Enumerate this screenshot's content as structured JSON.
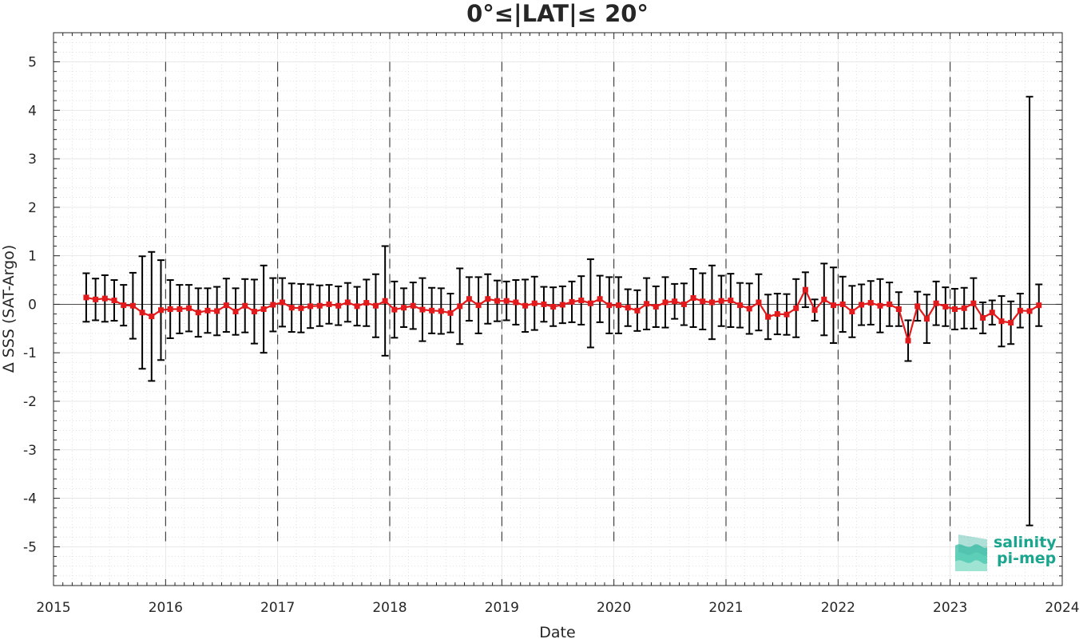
{
  "chart_data": {
    "type": "line",
    "title": "0°≤|LAT|≤ 20°",
    "xlabel": "Date",
    "ylabel": "Δ SSS (SAT-Argo)",
    "xlim": [
      2015,
      2024
    ],
    "ylim": [
      -5.8,
      5.6
    ],
    "xticks": [
      2015,
      2016,
      2017,
      2018,
      2019,
      2020,
      2021,
      2022,
      2023,
      2024
    ],
    "xtick_labels": [
      "2015",
      "2016",
      "2017",
      "2018",
      "2019",
      "2020",
      "2021",
      "2022",
      "2023",
      "2024"
    ],
    "yticks": [
      5,
      4,
      3,
      2,
      1,
      0,
      -1,
      -2,
      -3,
      -4,
      -5
    ],
    "ytick_labels": [
      "5",
      "4",
      "3",
      "2",
      "1",
      "0",
      "-1",
      "-2",
      "-3",
      "-4",
      "-5"
    ],
    "grid": true,
    "year_dividers": [
      2016,
      2017,
      2018,
      2019,
      2020,
      2021,
      2022,
      2023
    ],
    "series": [
      {
        "color": "#e31a1c",
        "x": [
          "2015-04",
          "2015-05",
          "2015-06",
          "2015-07",
          "2015-08",
          "2015-09",
          "2015-10",
          "2015-11",
          "2015-12",
          "2016-01",
          "2016-02",
          "2016-03",
          "2016-04",
          "2016-05",
          "2016-06",
          "2016-07",
          "2016-08",
          "2016-09",
          "2016-10",
          "2016-11",
          "2016-12",
          "2017-01",
          "2017-02",
          "2017-03",
          "2017-04",
          "2017-05",
          "2017-06",
          "2017-07",
          "2017-08",
          "2017-09",
          "2017-10",
          "2017-11",
          "2017-12",
          "2018-01",
          "2018-02",
          "2018-03",
          "2018-04",
          "2018-05",
          "2018-06",
          "2018-07",
          "2018-08",
          "2018-09",
          "2018-10",
          "2018-11",
          "2018-12",
          "2019-01",
          "2019-02",
          "2019-03",
          "2019-04",
          "2019-05",
          "2019-06",
          "2019-07",
          "2019-08",
          "2019-09",
          "2019-10",
          "2019-11",
          "2019-12",
          "2020-01",
          "2020-02",
          "2020-03",
          "2020-04",
          "2020-05",
          "2020-06",
          "2020-07",
          "2020-08",
          "2020-09",
          "2020-10",
          "2020-11",
          "2020-12",
          "2021-01",
          "2021-02",
          "2021-03",
          "2021-04",
          "2021-05",
          "2021-06",
          "2021-07",
          "2021-08",
          "2021-09",
          "2021-10",
          "2021-11",
          "2021-12",
          "2022-01",
          "2022-02",
          "2022-03",
          "2022-04",
          "2022-05",
          "2022-06",
          "2022-07",
          "2022-08",
          "2022-09",
          "2022-10",
          "2022-11",
          "2022-12",
          "2023-01",
          "2023-02",
          "2023-03",
          "2023-04",
          "2023-05",
          "2023-06",
          "2023-07",
          "2023-08",
          "2023-09",
          "2023-10"
        ],
        "values": [
          0.14,
          0.1,
          0.12,
          0.08,
          -0.02,
          -0.03,
          -0.17,
          -0.25,
          -0.12,
          -0.1,
          -0.1,
          -0.08,
          -0.17,
          -0.13,
          -0.14,
          -0.02,
          -0.15,
          -0.03,
          -0.15,
          -0.1,
          -0.01,
          0.04,
          -0.07,
          -0.08,
          -0.04,
          -0.03,
          0.0,
          -0.03,
          0.04,
          -0.04,
          0.03,
          -0.03,
          0.07,
          -0.11,
          -0.07,
          -0.03,
          -0.11,
          -0.13,
          -0.14,
          -0.18,
          -0.04,
          0.11,
          -0.02,
          0.11,
          0.07,
          0.07,
          0.04,
          -0.03,
          0.02,
          0.0,
          -0.05,
          -0.01,
          0.05,
          0.08,
          0.02,
          0.11,
          -0.02,
          -0.02,
          -0.07,
          -0.13,
          0.01,
          -0.05,
          0.04,
          0.06,
          0.0,
          0.13,
          0.06,
          0.04,
          0.07,
          0.08,
          -0.02,
          -0.09,
          0.04,
          -0.26,
          -0.2,
          -0.21,
          -0.08,
          0.3,
          -0.12,
          0.1,
          -0.02,
          0.0,
          -0.15,
          -0.01,
          0.03,
          -0.03,
          0.0,
          -0.1,
          -0.75,
          -0.04,
          -0.3,
          0.02,
          -0.05,
          -0.1,
          -0.08,
          0.02,
          -0.28,
          -0.17,
          -0.35,
          -0.38,
          -0.13,
          -0.14,
          -0.02
        ],
        "error": [
          0.5,
          0.43,
          0.48,
          0.42,
          0.42,
          0.68,
          1.16,
          1.33,
          1.03,
          0.6,
          0.5,
          0.48,
          0.5,
          0.46,
          0.5,
          0.55,
          0.48,
          0.55,
          0.66,
          0.9,
          0.55,
          0.5,
          0.5,
          0.5,
          0.45,
          0.42,
          0.4,
          0.4,
          0.4,
          0.4,
          0.48,
          0.65,
          1.13,
          0.58,
          0.4,
          0.48,
          0.65,
          0.47,
          0.47,
          0.4,
          0.78,
          0.45,
          0.58,
          0.51,
          0.42,
          0.4,
          0.46,
          0.54,
          0.55,
          0.36,
          0.4,
          0.38,
          0.42,
          0.5,
          0.91,
          0.48,
          0.58,
          0.58,
          0.38,
          0.42,
          0.53,
          0.42,
          0.52,
          0.36,
          0.43,
          0.6,
          0.58,
          0.76,
          0.52,
          0.55,
          0.46,
          0.52,
          0.58,
          0.46,
          0.42,
          0.42,
          0.6,
          0.36,
          0.22,
          0.74,
          0.78,
          0.57,
          0.53,
          0.42,
          0.45,
          0.55,
          0.45,
          0.35,
          0.42,
          0.3,
          0.5,
          0.45,
          0.4,
          0.42,
          0.42,
          0.52,
          0.32,
          0.25,
          0.52,
          0.44,
          0.35,
          4.42,
          0.43
        ]
      }
    ]
  },
  "logo": {
    "line1": "salinity",
    "line2": "pi-mep",
    "color": "#1aa58f"
  }
}
